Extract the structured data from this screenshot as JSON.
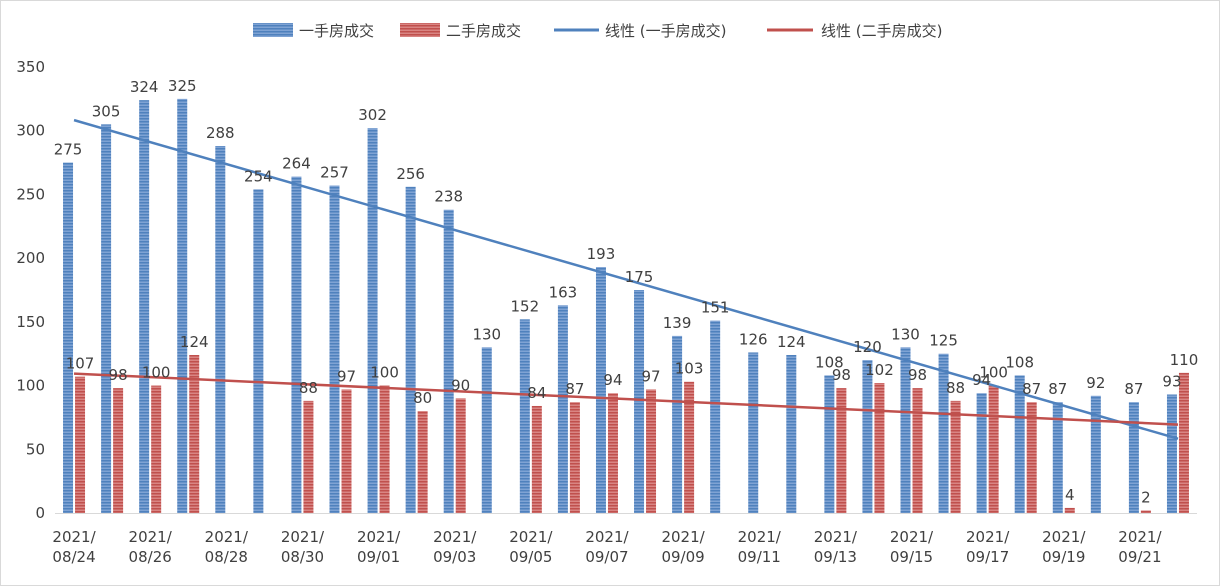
{
  "chart_data": {
    "type": "bar",
    "title": "",
    "xlabel": "",
    "ylabel": "",
    "ylim": [
      0,
      350
    ],
    "yticks": [
      0,
      50,
      100,
      150,
      200,
      250,
      300,
      350
    ],
    "grid": false,
    "legend_position": "top-center",
    "categories": [
      "2021/08/24",
      "2021/08/25",
      "2021/08/26",
      "2021/08/27",
      "2021/08/28",
      "2021/08/29",
      "2021/08/30",
      "2021/08/31",
      "2021/09/01",
      "2021/09/02",
      "2021/09/03",
      "2021/09/04",
      "2021/09/05",
      "2021/09/06",
      "2021/09/07",
      "2021/09/08",
      "2021/09/09",
      "2021/09/10",
      "2021/09/11",
      "2021/09/12",
      "2021/09/13",
      "2021/09/14",
      "2021/09/15",
      "2021/09/16",
      "2021/09/17",
      "2021/09/18",
      "2021/09/19",
      "2021/09/20",
      "2021/09/21",
      "2021/09/22"
    ],
    "x_tick_labels": [
      {
        "index": 0,
        "line1": "2021/",
        "line2": "08/24"
      },
      {
        "index": 2,
        "line1": "2021/",
        "line2": "08/26"
      },
      {
        "index": 4,
        "line1": "2021/",
        "line2": "08/28"
      },
      {
        "index": 6,
        "line1": "2021/",
        "line2": "08/30"
      },
      {
        "index": 8,
        "line1": "2021/",
        "line2": "09/01"
      },
      {
        "index": 10,
        "line1": "2021/",
        "line2": "09/03"
      },
      {
        "index": 12,
        "line1": "2021/",
        "line2": "09/05"
      },
      {
        "index": 14,
        "line1": "2021/",
        "line2": "09/07"
      },
      {
        "index": 16,
        "line1": "2021/",
        "line2": "09/09"
      },
      {
        "index": 18,
        "line1": "2021/",
        "line2": "09/11"
      },
      {
        "index": 20,
        "line1": "2021/",
        "line2": "09/13"
      },
      {
        "index": 22,
        "line1": "2021/",
        "line2": "09/15"
      },
      {
        "index": 24,
        "line1": "2021/",
        "line2": "09/17"
      },
      {
        "index": 26,
        "line1": "2021/",
        "line2": "09/19"
      },
      {
        "index": 28,
        "line1": "2021/",
        "line2": "09/21"
      }
    ],
    "series": [
      {
        "name": "一手房成交",
        "color": "#4f81bd",
        "values": [
          275,
          305,
          324,
          325,
          288,
          254,
          264,
          257,
          302,
          256,
          238,
          130,
          152,
          163,
          193,
          175,
          139,
          151,
          126,
          124,
          108,
          120,
          130,
          125,
          94,
          108,
          87,
          92,
          87,
          93
        ]
      },
      {
        "name": "二手房成交",
        "color": "#c0504d",
        "values": [
          107,
          98,
          100,
          124,
          null,
          null,
          88,
          97,
          100,
          80,
          90,
          null,
          84,
          87,
          94,
          97,
          103,
          null,
          null,
          null,
          98,
          102,
          98,
          88,
          100,
          87,
          4,
          null,
          2,
          110
        ]
      }
    ],
    "trendlines": [
      {
        "name": "线性 (一手房成交)",
        "color": "#4f81bd",
        "start": 308.3,
        "end": 58.3
      },
      {
        "name": "线性 (二手房成交)",
        "color": "#c0504d",
        "start": 109.4,
        "end": 69.4
      }
    ]
  }
}
